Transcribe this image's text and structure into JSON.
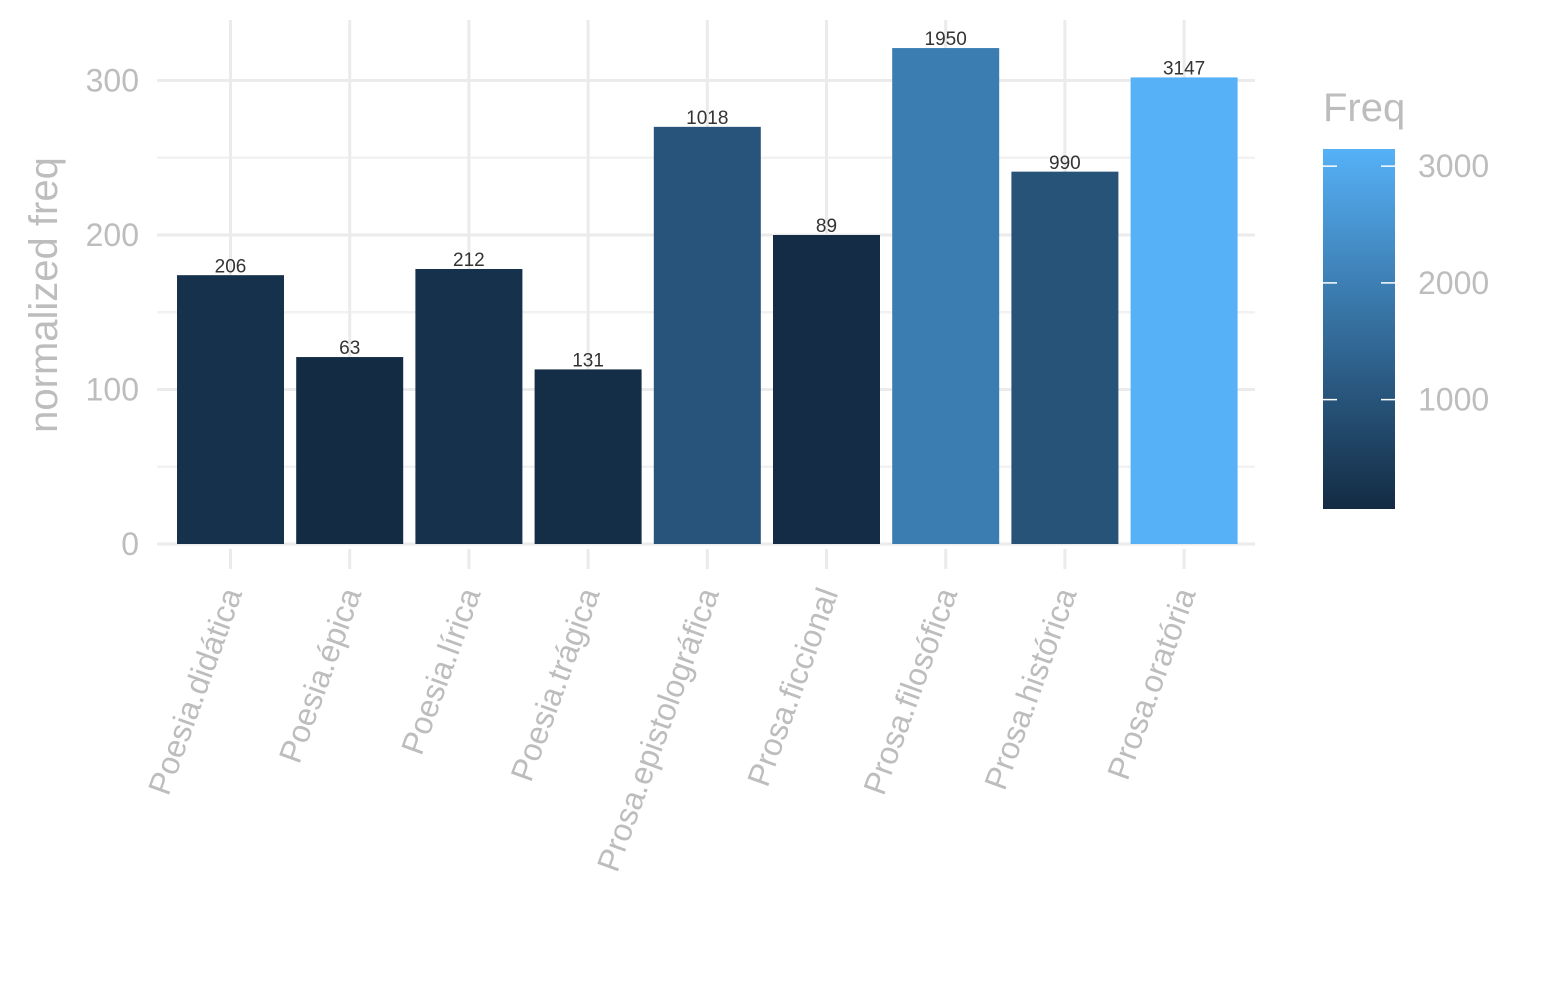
{
  "chart_data": {
    "type": "bar",
    "ylabel": "normalized freq",
    "xlabel": "",
    "ylim": [
      0,
      330
    ],
    "y_ticks": [
      0,
      100,
      200,
      300
    ],
    "y_minor_ticks": [
      50,
      150,
      250
    ],
    "grid": true,
    "categories": [
      "Poesia.didática",
      "Poesia.épica",
      "Poesia.lírica",
      "Poesia.trágica",
      "Prosa.epistolográfica",
      "Prosa.ficcional",
      "Prosa.filosófica",
      "Prosa.histórica",
      "Prosa.oratória"
    ],
    "values": [
      174,
      121,
      178,
      113,
      270,
      200,
      321,
      241,
      302
    ],
    "freq": [
      206,
      63,
      212,
      131,
      1018,
      89,
      1950,
      990,
      3147
    ],
    "bar_labels": [
      "206",
      "63",
      "212",
      "131",
      "1018",
      "89",
      "1950",
      "990",
      "3147"
    ],
    "legend": {
      "title": "Freq",
      "position": "right",
      "min": 63,
      "max": 3147,
      "breaks": [
        1000,
        2000,
        3000
      ],
      "break_labels": [
        "1000",
        "2000",
        "3000"
      ],
      "low_color": "#132B43",
      "high_color": "#56B1F7"
    }
  }
}
